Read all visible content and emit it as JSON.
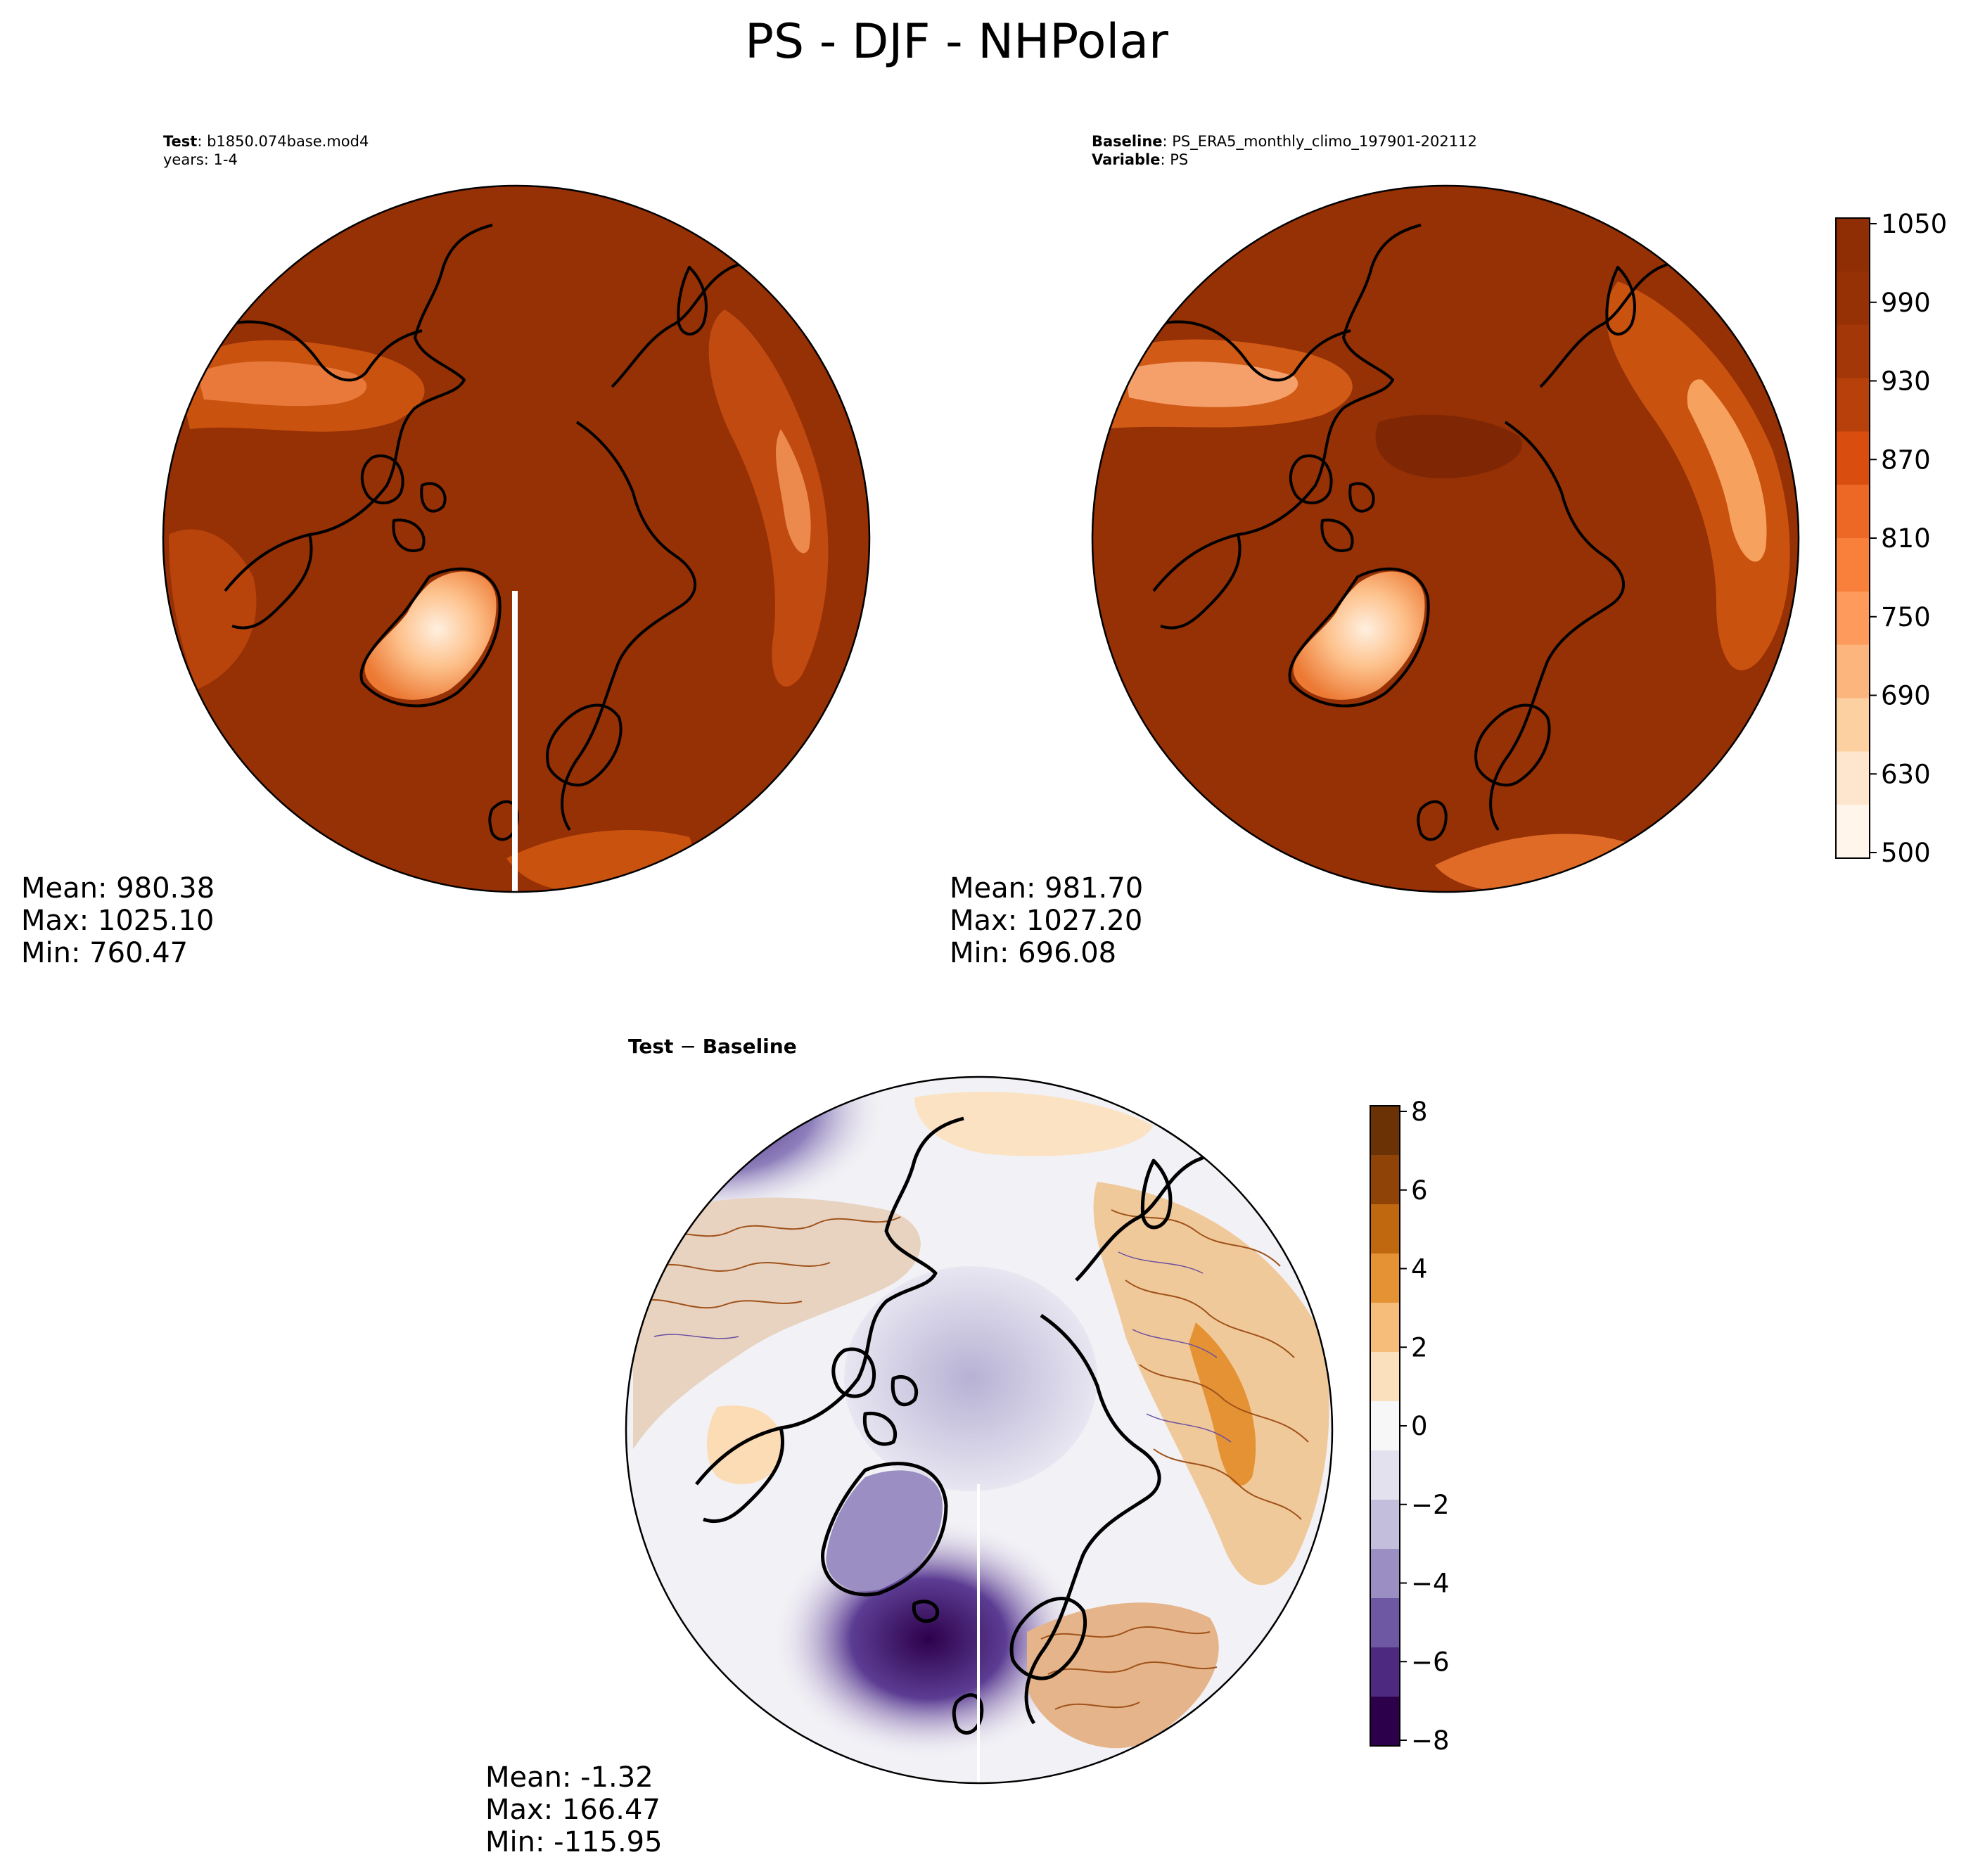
{
  "title": "PS - DJF - NHPolar",
  "panels": {
    "test": {
      "label_bold": "Test",
      "label_value": ": b1850.074base.mod4",
      "line2": "years: 1-4",
      "mean": "Mean: 980.38",
      "max": "Max: 1025.10",
      "min": "Min: 760.47"
    },
    "baseline": {
      "label_bold": "Baseline",
      "label_value": ": PS_ERA5_monthly_climo_197901-202112",
      "line2_bold": "Variable",
      "line2_value": ": PS",
      "mean": "Mean: 981.70",
      "max": "Max: 1027.20",
      "min": "Min: 696.08"
    },
    "diff": {
      "label_a": "Test",
      "label_op": " − ",
      "label_b": "Baseline",
      "mean": "Mean: -1.32",
      "max": "Max: 166.47",
      "min": "Min: -115.95"
    }
  },
  "colorbars": {
    "ps": {
      "colormap": "Oranges",
      "ticks": [
        "1050",
        "990",
        "930",
        "870",
        "810",
        "750",
        "690",
        "630",
        "500"
      ],
      "colors": [
        "#fff5eb",
        "#fee6ce",
        "#fdd0a2",
        "#fdb57e",
        "#fd9a5c",
        "#f8803a",
        "#ec6824",
        "#d94e0f",
        "#b8400a",
        "#a33707",
        "#963005",
        "#8f2e04"
      ]
    },
    "diff": {
      "colormap": "PuOr_r",
      "ticks": [
        "8",
        "6",
        "4",
        "2",
        "0",
        "−2",
        "−4",
        "−6",
        "−8"
      ],
      "colors": [
        "#2d004b",
        "#4d2a80",
        "#6e57a3",
        "#9a8ec2",
        "#c4bedd",
        "#e4e1ef",
        "#f7f7f7",
        "#fbe0bd",
        "#f6bd7a",
        "#e59234",
        "#c06810",
        "#8f4307",
        "#6b3205"
      ]
    }
  }
}
